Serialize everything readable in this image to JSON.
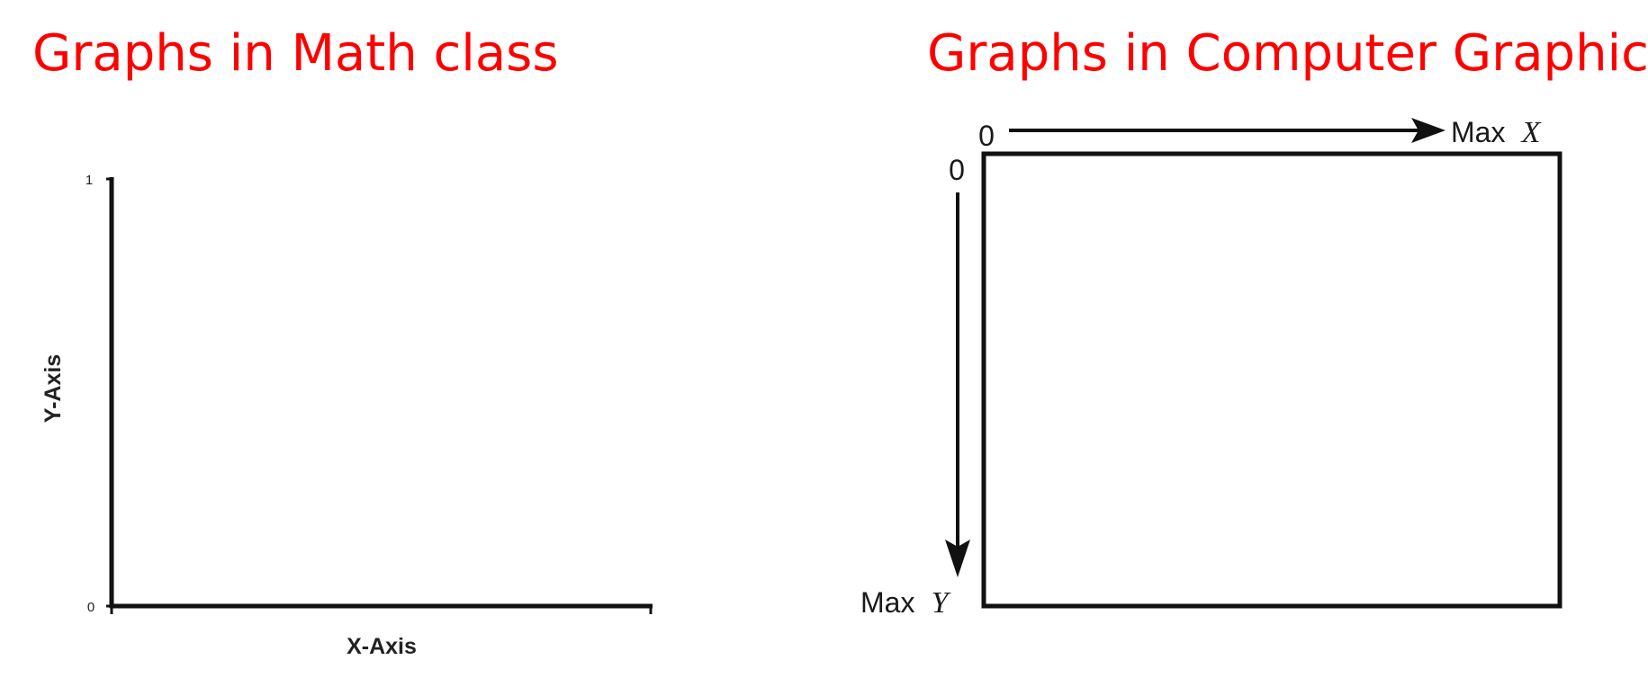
{
  "left_panel": {
    "title": "Graphs in Math class",
    "x_axis_label": "X-Axis",
    "y_axis_label": "Y-Axis",
    "y_ticks": [
      "1",
      "0"
    ]
  },
  "right_panel": {
    "title": "Graphs in Computer Graphics",
    "origin_x_label": "0",
    "origin_y_label": "0",
    "max_x_text": "Max",
    "max_x_var": "X",
    "max_y_text": "Max",
    "max_y_var": "Y"
  },
  "colors": {
    "title": "#ff0000",
    "lines": "#1a1a1a"
  }
}
